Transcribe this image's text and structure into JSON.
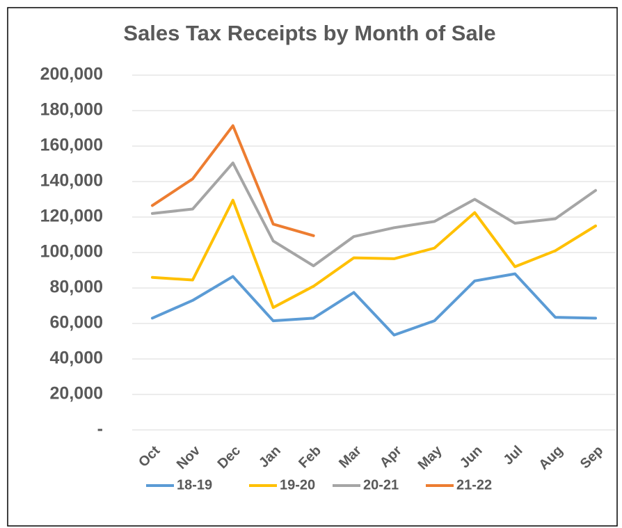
{
  "chart_data": {
    "type": "line",
    "title": "Sales Tax Receipts by Month of Sale",
    "categories": [
      "Oct",
      "Nov",
      "Dec",
      "Jan",
      "Feb",
      "Mar",
      "Apr",
      "May",
      "Jun",
      "Jul",
      "Aug",
      "Sep"
    ],
    "series": [
      {
        "name": "18-19",
        "color": "#5b9bd5",
        "values": [
          63000,
          73000,
          86500,
          61500,
          63000,
          77500,
          53500,
          61500,
          84000,
          88000,
          63500,
          63000
        ]
      },
      {
        "name": "19-20",
        "color": "#ffc000",
        "values": [
          86000,
          84500,
          129500,
          69000,
          81000,
          97000,
          96500,
          102500,
          122500,
          92000,
          101000,
          115000
        ]
      },
      {
        "name": "20-21",
        "color": "#a5a5a5",
        "values": [
          122000,
          124500,
          150500,
          106500,
          92500,
          109000,
          114000,
          117500,
          130000,
          116500,
          119000,
          135000
        ]
      },
      {
        "name": "21-22",
        "color": "#ed7d31",
        "values": [
          126500,
          141500,
          171500,
          116000,
          109500,
          null,
          null,
          null,
          null,
          null,
          null,
          null
        ]
      }
    ],
    "ylim": [
      0,
      200000
    ],
    "yticks": [
      {
        "value": 0,
        "label": "-"
      },
      {
        "value": 20000,
        "label": "20,000"
      },
      {
        "value": 40000,
        "label": "40,000"
      },
      {
        "value": 60000,
        "label": "60,000"
      },
      {
        "value": 80000,
        "label": "80,000"
      },
      {
        "value": 100000,
        "label": "100,000"
      },
      {
        "value": 120000,
        "label": "120,000"
      },
      {
        "value": 140000,
        "label": "140,000"
      },
      {
        "value": 160000,
        "label": "160,000"
      },
      {
        "value": 180000,
        "label": "180,000"
      },
      {
        "value": 200000,
        "label": "200,000"
      }
    ],
    "grid": true,
    "legend": "bottom"
  }
}
